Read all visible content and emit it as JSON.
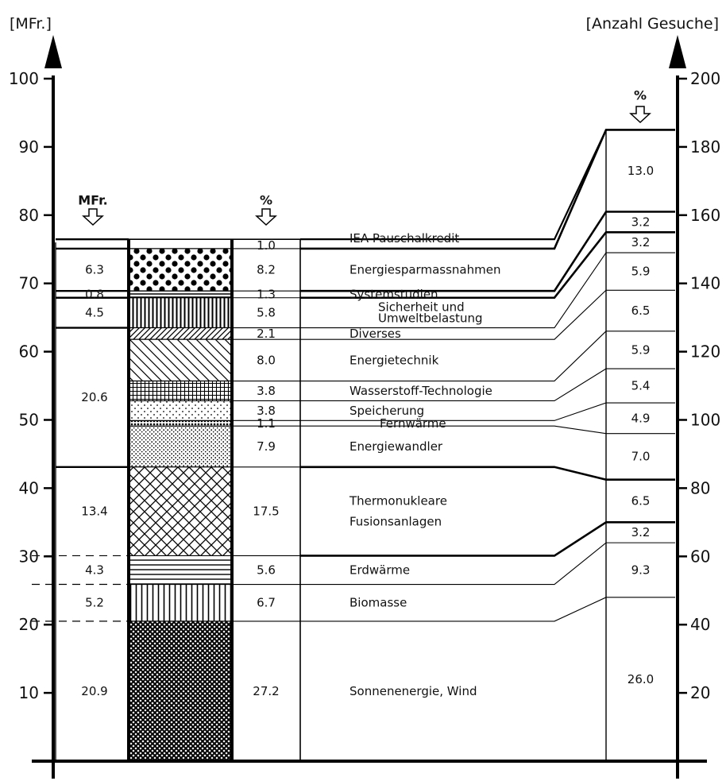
{
  "chart_data": {
    "type": "stacked-bar",
    "left_axis": {
      "unit": "[MFr.]",
      "ticks": [
        10,
        20,
        30,
        40,
        50,
        60,
        70,
        80,
        90,
        100
      ],
      "range": [
        0,
        107
      ]
    },
    "right_axis": {
      "unit": "[Anzahl Gesuche]",
      "ticks": [
        20,
        40,
        60,
        80,
        100,
        120,
        140,
        160,
        180,
        200
      ],
      "range": [
        0,
        214
      ]
    },
    "column_headers": {
      "mfr": "MFr.",
      "percent_left": "%",
      "percent_right": "%"
    },
    "categories": [
      {
        "name": "Sonnenenergie, Wind",
        "percent": "27.2",
        "pattern": "dense-cross",
        "from": 0,
        "to": 20.5,
        "right_pct": "26.0",
        "right_from": 0,
        "right_to": 48
      },
      {
        "name": "Biomasse",
        "percent": "6.7",
        "pattern": "vertical",
        "from": 20.5,
        "to": 25.9,
        "right_pct": "9.3",
        "right_from": 48,
        "right_to": 64
      },
      {
        "name": "Erdwärme",
        "percent": "5.6",
        "pattern": "horizontal",
        "from": 25.9,
        "to": 30.1,
        "right_pct": "3.2",
        "right_from": 64,
        "right_to": 70
      },
      {
        "name": "Thermonukleare Fusionsanlagen",
        "name_lines": [
          "Thermonukleare",
          "Fusionsanlagen"
        ],
        "percent": "17.5",
        "pattern": "crosshatch",
        "from": 30.1,
        "to": 43.1,
        "right_pct": "6.5",
        "right_from": 70,
        "right_to": 82.5
      },
      {
        "name": "Energiewandler",
        "percent": "7.9",
        "pattern": "stipple",
        "from": 43.1,
        "to": 49.1,
        "right_pct": "7.0",
        "right_from": 82.5,
        "right_to": 96
      },
      {
        "name": "Fernwärme",
        "percent": "1.1",
        "pattern": "dots-dense",
        "from": 49.1,
        "to": 49.9,
        "right_pct": "4.9",
        "right_from": 96,
        "right_to": 105
      },
      {
        "name": "Speicherung",
        "percent": "3.8",
        "pattern": "dots-sparse",
        "from": 49.9,
        "to": 52.8,
        "right_pct": "5.4",
        "right_from": 105,
        "right_to": 115
      },
      {
        "name": "Wasserstoff-Technologie",
        "percent": "3.8",
        "pattern": "grid",
        "from": 52.8,
        "to": 55.7,
        "right_pct": "5.9",
        "right_from": 115,
        "right_to": 126
      },
      {
        "name": "Energietechnik",
        "percent": "8.0",
        "pattern": "diag-wide",
        "from": 55.7,
        "to": 61.8,
        "right_pct": "6.5",
        "right_from": 126,
        "right_to": 138
      },
      {
        "name": "Diverses",
        "percent": "2.1",
        "pattern": "diag-narrow",
        "from": 61.8,
        "to": 63.5,
        "right_pct": "5.9",
        "right_from": 138,
        "right_to": 149
      },
      {
        "name": "Sicherheit und Umweltbelastung",
        "name_lines": [
          "Sicherheit und",
          "Umweltbelastung"
        ],
        "percent": "5.8",
        "pattern": "vertical-dense",
        "from": 63.5,
        "to": 67.9,
        "right_pct": "3.2",
        "right_from": 149,
        "right_to": 155
      },
      {
        "name": "Systemstudien",
        "percent": "1.3",
        "pattern": "horizontal-dense",
        "from": 67.9,
        "to": 68.9,
        "right_pct": "3.2",
        "right_from": 155,
        "right_to": 161
      },
      {
        "name": "Energiesparmassnahmen",
        "percent": "8.2",
        "pattern": "big-dots",
        "from": 68.9,
        "to": 75.1,
        "right_pct": "13.0",
        "right_from": 161,
        "right_to": 185
      },
      {
        "name": "IEA Pauschalkredit",
        "percent": "1.0",
        "pattern": "none",
        "from": 75.1,
        "to": 76.0
      }
    ],
    "mfr_groups": [
      {
        "value": "20.9",
        "from": 0,
        "to": 20.5,
        "dashed": true
      },
      {
        "value": "5.2",
        "from": 20.5,
        "to": 25.9,
        "dashed": true
      },
      {
        "value": "4.3",
        "from": 25.9,
        "to": 30.1,
        "dashed": true
      },
      {
        "value": "13.4",
        "from": 30.1,
        "to": 43.1,
        "dashed": false
      },
      {
        "value": "20.6",
        "from": 43.1,
        "to": 63.5,
        "dashed": false
      },
      {
        "value": "4.5",
        "from": 63.5,
        "to": 67.9,
        "dashed": false
      },
      {
        "value": "0.8",
        "from": 67.9,
        "to": 68.9,
        "dashed": false
      },
      {
        "value": "6.3",
        "from": 68.9,
        "to": 75.1,
        "dashed": false
      }
    ]
  }
}
